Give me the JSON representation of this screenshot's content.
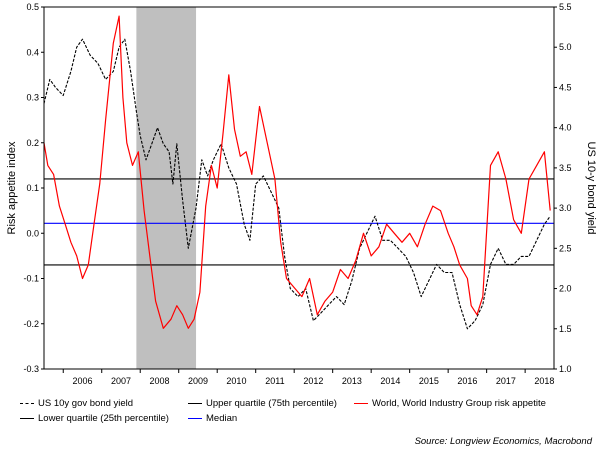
{
  "chart_data": {
    "type": "line",
    "title": "",
    "ylabel_left": "Risk appetite index",
    "ylabel_right": "US 10-y bond yield",
    "ylim_left": [
      -0.3,
      0.5
    ],
    "ylim_right": [
      1.0,
      5.5
    ],
    "yticks_left": [
      "0.5",
      "0.4",
      "0.3",
      "0.2",
      "0.1",
      "0.0",
      "-0.1",
      "-0.2",
      "-0.3"
    ],
    "yticks_right": [
      "5.5",
      "5.0",
      "4.5",
      "4.0",
      "3.5",
      "3.0",
      "2.5",
      "2.0",
      "1.5",
      "1.0"
    ],
    "x_range": [
      2005.5,
      2018.75
    ],
    "xtick_labels": [
      "2006",
      "2007",
      "2008",
      "2009",
      "2010",
      "2011",
      "2012",
      "2013",
      "2014",
      "2015",
      "2016",
      "2017",
      "2018"
    ],
    "recession_shading": [
      2007.9,
      2009.45
    ],
    "reference_lines": [
      {
        "name": "Upper quartile (75th percentile)",
        "value": 0.12,
        "color": "#000000"
      },
      {
        "name": "Median",
        "value": 0.022,
        "color": "#0000ff"
      },
      {
        "name": "Lower quartile (25th percentile)",
        "value": -0.07,
        "color": "#000000"
      }
    ],
    "series": [
      {
        "name": "US 10y gov bond yield",
        "axis": "right",
        "style": "dashed",
        "color": "#000000",
        "x": [
          2005.5,
          2005.65,
          2005.8,
          2006.0,
          2006.2,
          2006.35,
          2006.5,
          2006.7,
          2006.9,
          2007.1,
          2007.3,
          2007.45,
          2007.6,
          2007.75,
          2007.9,
          2008.0,
          2008.15,
          2008.3,
          2008.45,
          2008.6,
          2008.75,
          2008.85,
          2008.95,
          2009.1,
          2009.25,
          2009.45,
          2009.6,
          2009.75,
          2009.9,
          2010.1,
          2010.3,
          2010.5,
          2010.7,
          2010.85,
          2011.0,
          2011.2,
          2011.4,
          2011.6,
          2011.75,
          2011.9,
          2012.1,
          2012.3,
          2012.5,
          2012.7,
          2012.9,
          2013.1,
          2013.3,
          2013.5,
          2013.7,
          2013.9,
          2014.1,
          2014.3,
          2014.5,
          2014.7,
          2014.9,
          2015.1,
          2015.3,
          2015.5,
          2015.7,
          2015.9,
          2016.1,
          2016.3,
          2016.5,
          2016.7,
          2016.9,
          2017.1,
          2017.3,
          2017.5,
          2017.7,
          2017.9,
          2018.1,
          2018.3,
          2018.5,
          2018.65
        ],
        "y": [
          4.3,
          4.6,
          4.5,
          4.4,
          4.7,
          5.0,
          5.1,
          4.9,
          4.8,
          4.6,
          4.7,
          5.0,
          5.1,
          4.7,
          4.2,
          3.9,
          3.6,
          3.8,
          4.0,
          3.8,
          3.7,
          3.3,
          3.8,
          3.1,
          2.5,
          3.0,
          3.6,
          3.4,
          3.6,
          3.8,
          3.5,
          3.3,
          2.8,
          2.6,
          3.3,
          3.4,
          3.2,
          3.0,
          2.4,
          2.0,
          1.9,
          2.0,
          1.6,
          1.7,
          1.8,
          1.9,
          1.8,
          2.1,
          2.5,
          2.7,
          2.9,
          2.6,
          2.6,
          2.5,
          2.4,
          2.2,
          1.9,
          2.1,
          2.3,
          2.2,
          2.2,
          1.8,
          1.5,
          1.6,
          1.8,
          2.3,
          2.5,
          2.3,
          2.3,
          2.4,
          2.4,
          2.6,
          2.8,
          2.9
        ]
      },
      {
        "name": "World, World Industry Group risk appetite",
        "axis": "left",
        "style": "solid",
        "color": "#ff0000",
        "x": [
          2005.5,
          2005.6,
          2005.75,
          2005.9,
          2006.05,
          2006.2,
          2006.35,
          2006.5,
          2006.65,
          2006.8,
          2006.95,
          2007.1,
          2007.3,
          2007.45,
          2007.55,
          2007.65,
          2007.8,
          2007.95,
          2008.1,
          2008.25,
          2008.4,
          2008.6,
          2008.8,
          2008.95,
          2009.1,
          2009.25,
          2009.4,
          2009.55,
          2009.7,
          2009.85,
          2010.0,
          2010.15,
          2010.3,
          2010.45,
          2010.6,
          2010.75,
          2010.9,
          2011.1,
          2011.3,
          2011.5,
          2011.65,
          2011.8,
          2012.0,
          2012.2,
          2012.4,
          2012.6,
          2012.8,
          2013.0,
          2013.2,
          2013.4,
          2013.6,
          2013.8,
          2014.0,
          2014.2,
          2014.4,
          2014.6,
          2014.8,
          2015.0,
          2015.2,
          2015.4,
          2015.6,
          2015.8,
          2016.0,
          2016.15,
          2016.3,
          2016.5,
          2016.6,
          2016.75,
          2016.9,
          2017.1,
          2017.3,
          2017.5,
          2017.7,
          2017.9,
          2018.1,
          2018.3,
          2018.5,
          2018.65
        ],
        "y": [
          0.2,
          0.15,
          0.13,
          0.06,
          0.02,
          -0.02,
          -0.05,
          -0.1,
          -0.07,
          0.02,
          0.11,
          0.25,
          0.42,
          0.48,
          0.3,
          0.2,
          0.15,
          0.18,
          0.05,
          -0.05,
          -0.15,
          -0.21,
          -0.19,
          -0.16,
          -0.18,
          -0.21,
          -0.19,
          -0.13,
          0.06,
          0.15,
          0.1,
          0.22,
          0.35,
          0.23,
          0.17,
          0.18,
          0.13,
          0.28,
          0.2,
          0.12,
          -0.02,
          -0.1,
          -0.12,
          -0.14,
          -0.1,
          -0.18,
          -0.15,
          -0.13,
          -0.08,
          -0.1,
          -0.06,
          0.0,
          -0.05,
          -0.03,
          0.02,
          0.0,
          -0.02,
          0.0,
          -0.03,
          0.02,
          0.06,
          0.05,
          0.0,
          -0.03,
          -0.07,
          -0.1,
          -0.16,
          -0.18,
          -0.14,
          0.15,
          0.18,
          0.12,
          0.03,
          0.0,
          0.12,
          0.15,
          0.18,
          0.05
        ]
      }
    ],
    "legend": [
      {
        "label": "US 10y gov bond yield",
        "style": "dashed",
        "color": "#000000"
      },
      {
        "label": "Upper quartile (75th percentile)",
        "style": "solid",
        "color": "#000000"
      },
      {
        "label": "World, World Industry Group risk appetite",
        "style": "solid",
        "color": "#ff0000"
      },
      {
        "label": "Lower quartile (25th percentile)",
        "style": "solid",
        "color": "#000000"
      },
      {
        "label": "Median",
        "style": "solid",
        "color": "#0000ff"
      }
    ]
  },
  "source": "Source: Longview Economics, Macrobond"
}
